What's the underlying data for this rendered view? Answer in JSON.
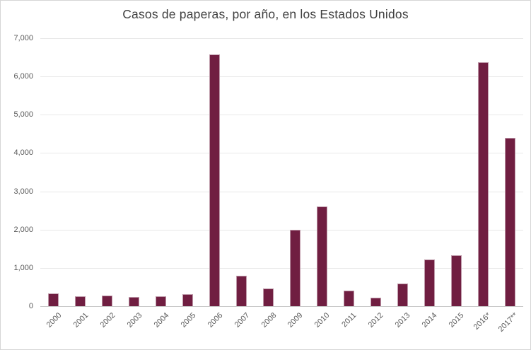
{
  "chart_data": {
    "type": "bar",
    "title": "Casos de paperas, por año, en los Estados Unidos",
    "categories": [
      "2000",
      "2001",
      "2002",
      "2003",
      "2004",
      "2005",
      "2006",
      "2007",
      "2008",
      "2009",
      "2010",
      "2011",
      "2012",
      "2013",
      "2014",
      "2015",
      "2016*",
      "2017**"
    ],
    "values": [
      338,
      266,
      270,
      231,
      258,
      314,
      6584,
      800,
      454,
      1991,
      2612,
      404,
      229,
      584,
      1223,
      1329,
      6366,
      4400
    ],
    "xlabel": "",
    "ylabel": "",
    "ylim": [
      0,
      7000
    ],
    "y_tick_values": [
      7000,
      6000,
      5000,
      4000,
      3000,
      2000,
      1000,
      0
    ],
    "y_tick_labels": [
      "7,000",
      "6,000",
      "5,000",
      "4,000",
      "3,000",
      "2,000",
      "1,000",
      "0"
    ],
    "grid": "horizontal-only",
    "legend": "none",
    "x_label_rotation_deg": 45,
    "colors": {
      "bar_fill": "#701E41",
      "bar_border": "#DBС0CC",
      "title_text": "#404040",
      "tick_text": "#595959",
      "gridline": "#E8E8E8",
      "zero_line": "#C9C9C9",
      "frame_border": "#D6D6D6",
      "background": "#FFFFFF"
    }
  }
}
